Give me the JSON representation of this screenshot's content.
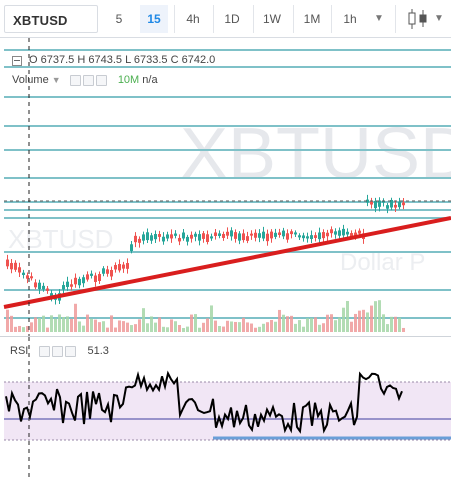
{
  "toolbar": {
    "symbol": "XBTUSD",
    "timeframes": [
      {
        "label": "5",
        "active": false
      },
      {
        "label": "15",
        "active": true
      },
      {
        "label": "4h",
        "active": false
      },
      {
        "label": "1D",
        "active": false
      },
      {
        "label": "1W",
        "active": false
      },
      {
        "label": "1M",
        "active": false
      },
      {
        "label": "1h",
        "active": false
      }
    ],
    "more_icon": "chevron-down-icon",
    "chart_type_icon": "candlestick-icon"
  },
  "price_pane": {
    "ohlc": {
      "o_label": "O",
      "o": "6737.5",
      "h_label": "H",
      "h": "6743.5",
      "l_label": "L",
      "l": "6733.5",
      "c_label": "C",
      "c": "6742.0"
    },
    "volume_label": "Volume",
    "volume_period": "10M",
    "volume_value": "n/a",
    "watermark": "XBTUSD",
    "watermark_sub_left": "XBTUSD",
    "watermark_sub_right": "Dollar P"
  },
  "rsi_pane": {
    "label": "RSI",
    "value": "51.3"
  },
  "colors": {
    "candle_up": "#26a69a",
    "candle_down": "#ef5350",
    "hline": "#7fc1c8",
    "trendline": "#d91e1e",
    "rsi_band": "#f1e6f5",
    "rsi_line": "#000000",
    "rsi_level": "#3f3f9f",
    "rsi_support": "#6a9fd8"
  }
}
